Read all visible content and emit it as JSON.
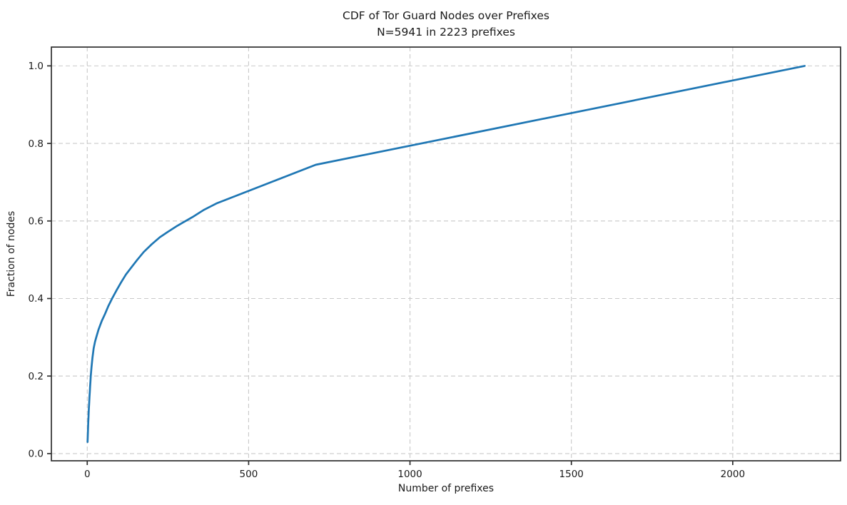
{
  "figure": {
    "background": "#ffffff"
  },
  "chart_data": {
    "type": "line",
    "title": "CDF of Tor Guard Nodes over Prefixes",
    "subtitle": "N=5941 in 2223 prefixes",
    "n_nodes": 5941,
    "n_prefixes": 2223,
    "xlabel": "Number of prefixes",
    "ylabel": "Fraction of nodes",
    "xlim": [
      -111.15,
      2334.15
    ],
    "ylim": [
      -0.0185,
      1.0485
    ],
    "grid": "on",
    "grid_style": "dashed",
    "legend_position": "none",
    "line_color": "#1f77b4",
    "grid_color": "#c9c9c9",
    "axis_color": "#2e2e2e",
    "text_color": "#1a1a1a",
    "xticks": [
      {
        "v": 0,
        "label": "0"
      },
      {
        "v": 500,
        "label": "500"
      },
      {
        "v": 1000,
        "label": "1000"
      },
      {
        "v": 1500,
        "label": "1500"
      },
      {
        "v": 2000,
        "label": "2000"
      }
    ],
    "yticks": [
      {
        "v": 0.0,
        "label": "0.0"
      },
      {
        "v": 0.2,
        "label": "0.2"
      },
      {
        "v": 0.4,
        "label": "0.4"
      },
      {
        "v": 0.6,
        "label": "0.6"
      },
      {
        "v": 0.8,
        "label": "0.8"
      },
      {
        "v": 1.0,
        "label": "1.0"
      }
    ],
    "points": [
      [
        1,
        0.03
      ],
      [
        2,
        0.055
      ],
      [
        3,
        0.077
      ],
      [
        4,
        0.097
      ],
      [
        5,
        0.115
      ],
      [
        6,
        0.131
      ],
      [
        7,
        0.146
      ],
      [
        8,
        0.16
      ],
      [
        9,
        0.174
      ],
      [
        10,
        0.187
      ],
      [
        11,
        0.2
      ],
      [
        13,
        0.222
      ],
      [
        16,
        0.246
      ],
      [
        20,
        0.272
      ],
      [
        24,
        0.288
      ],
      [
        28,
        0.3
      ],
      [
        35,
        0.32
      ],
      [
        45,
        0.342
      ],
      [
        55,
        0.36
      ],
      [
        65,
        0.38
      ],
      [
        77,
        0.4
      ],
      [
        90,
        0.42
      ],
      [
        105,
        0.442
      ],
      [
        120,
        0.462
      ],
      [
        140,
        0.484
      ],
      [
        155,
        0.5
      ],
      [
        175,
        0.52
      ],
      [
        200,
        0.54
      ],
      [
        225,
        0.558
      ],
      [
        250,
        0.572
      ],
      [
        280,
        0.588
      ],
      [
        305,
        0.6
      ],
      [
        330,
        0.612
      ],
      [
        360,
        0.628
      ],
      [
        400,
        0.645
      ],
      [
        708,
        0.745
      ],
      [
        2223,
        1.0
      ]
    ]
  }
}
